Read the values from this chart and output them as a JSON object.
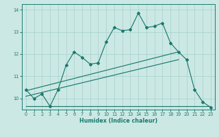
{
  "xlabel": "Humidex (Indice chaleur)",
  "bg_color": "#cce8e4",
  "grid_color": "#aad4cf",
  "line_color": "#1a7a6e",
  "xlim": [
    -0.5,
    23.5
  ],
  "ylim": [
    9.5,
    14.25
  ],
  "yticks": [
    10,
    11,
    12,
    13,
    14
  ],
  "xticks": [
    0,
    1,
    2,
    3,
    4,
    5,
    6,
    7,
    8,
    9,
    10,
    11,
    12,
    13,
    14,
    15,
    16,
    17,
    18,
    19,
    20,
    21,
    22,
    23
  ],
  "series1_x": [
    0,
    1,
    2,
    3,
    4,
    5,
    6,
    7,
    8,
    9,
    10,
    11,
    12,
    13,
    14,
    15,
    16,
    17,
    18,
    19,
    20,
    21,
    22,
    23
  ],
  "series1_y": [
    10.4,
    10.0,
    10.2,
    9.65,
    10.4,
    11.5,
    12.1,
    11.85,
    11.55,
    11.6,
    12.55,
    13.2,
    13.05,
    13.1,
    13.85,
    13.2,
    13.25,
    13.4,
    12.5,
    12.1,
    11.75,
    10.4,
    9.85,
    9.6
  ],
  "series2_x": [
    0,
    23
  ],
  "series2_y": [
    9.65,
    9.65
  ],
  "series3_x": [
    0,
    19
  ],
  "series3_y": [
    10.35,
    12.1
  ],
  "series4_x": [
    0,
    19
  ],
  "series4_y": [
    10.1,
    11.75
  ]
}
